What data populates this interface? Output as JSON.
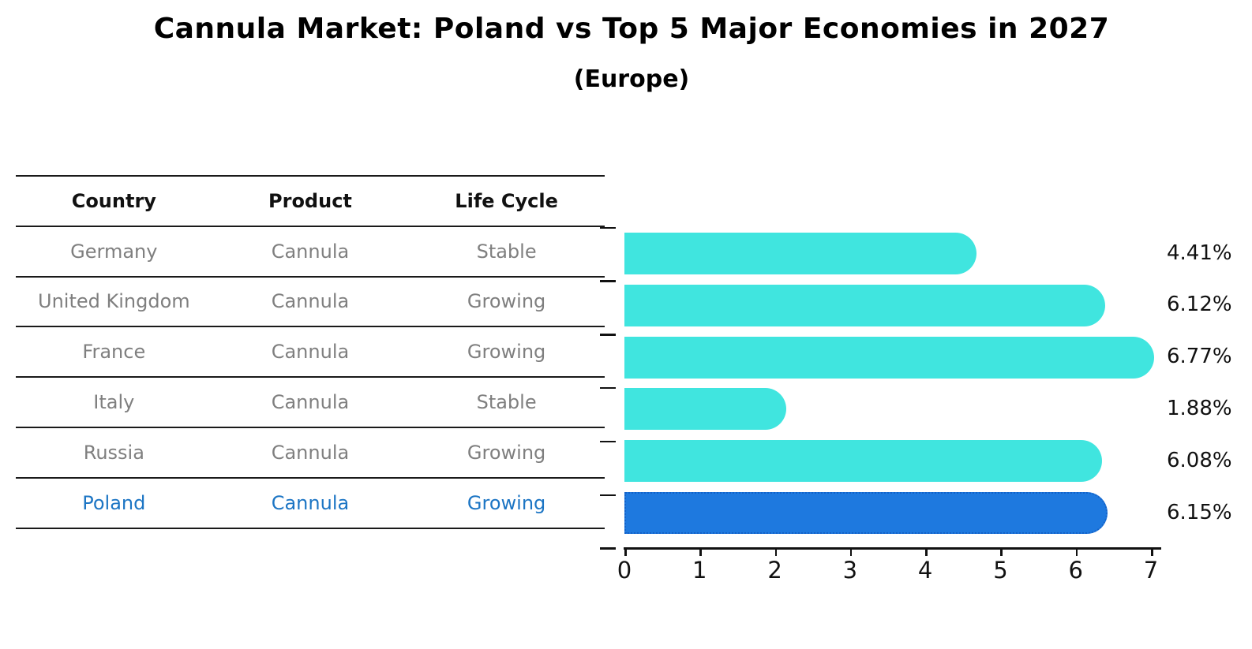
{
  "header": {
    "title": "Cannula Market: Poland vs Top 5 Major Economies in 2027",
    "subtitle": "(Europe)"
  },
  "table": {
    "columns": [
      "Country",
      "Product",
      "Life Cycle"
    ],
    "rows": [
      {
        "country": "Germany",
        "product": "Cannula",
        "life_cycle": "Stable",
        "highlight": false
      },
      {
        "country": "United Kingdom",
        "product": "Cannula",
        "life_cycle": "Growing",
        "highlight": false
      },
      {
        "country": "France",
        "product": "Cannula",
        "life_cycle": "Growing",
        "highlight": false
      },
      {
        "country": "Italy",
        "product": "Cannula",
        "life_cycle": "Stable",
        "highlight": false
      },
      {
        "country": "Russia",
        "product": "Cannula",
        "life_cycle": "Growing",
        "highlight": false
      },
      {
        "country": "Poland",
        "product": "Cannula",
        "life_cycle": "Growing",
        "highlight": true
      }
    ]
  },
  "chart_data": {
    "type": "bar",
    "orientation": "horizontal",
    "title": "Cannula Market: Poland vs Top 5 Major Economies in 2027",
    "subtitle": "(Europe)",
    "categories": [
      "Germany",
      "United Kingdom",
      "France",
      "Italy",
      "Russia",
      "Poland"
    ],
    "values": [
      4.41,
      6.12,
      6.77,
      1.88,
      6.08,
      6.15
    ],
    "value_labels": [
      "4.41%",
      "6.12%",
      "6.77%",
      "1.88%",
      "6.08%",
      "6.15%"
    ],
    "unit": "%",
    "xlim": [
      0,
      7
    ],
    "xticks": [
      "0",
      "1",
      "2",
      "3",
      "4",
      "5",
      "6",
      "7"
    ],
    "grid": false,
    "legend": false,
    "highlight_index": 5,
    "bar_color": "#40e5df",
    "highlight_bar_color": "#1e79df",
    "highlight_border_color": "#1462c8",
    "highlight_text_color": "#1c75c4",
    "text_color": "#111111",
    "muted_text_color": "#7f7f7f"
  }
}
